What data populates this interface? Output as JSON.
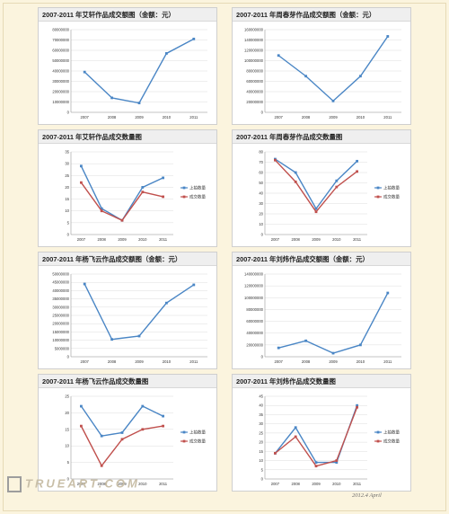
{
  "chart_data": [
    {
      "type": "line",
      "title": "2007-2011 年艾轩作品成交额图（金额：元）",
      "categories": [
        "2007",
        "2008",
        "2009",
        "2010",
        "2011"
      ],
      "yticks": [
        "0",
        "10000000",
        "20000000",
        "30000000",
        "40000000",
        "50000000",
        "60000000",
        "70000000",
        "80000000"
      ],
      "ylim": [
        0,
        80000000
      ],
      "series": [
        {
          "color": "#4a86c5",
          "values": [
            39000000,
            14000000,
            9000000,
            57000000,
            71000000
          ]
        }
      ]
    },
    {
      "type": "line",
      "title": "2007-2011 年周春芽作品成交额图（金额：元）",
      "categories": [
        "2007",
        "2008",
        "2009",
        "2010",
        "2011"
      ],
      "yticks": [
        "0",
        "20000000",
        "40000000",
        "60000000",
        "80000000",
        "100000000",
        "120000000",
        "140000000",
        "160000000"
      ],
      "ylim": [
        0,
        160000000
      ],
      "series": [
        {
          "color": "#4a86c5",
          "values": [
            110000000,
            70000000,
            22000000,
            70000000,
            147000000
          ]
        }
      ]
    },
    {
      "type": "line",
      "title": "2007-2011 年艾轩作品成交数量图",
      "categories": [
        "2007",
        "2008",
        "2009",
        "2010",
        "2011"
      ],
      "yticks": [
        "0",
        "5",
        "10",
        "15",
        "20",
        "25",
        "30",
        "35"
      ],
      "ylim": [
        0,
        35
      ],
      "legend": "right",
      "series": [
        {
          "name": "上拍数量",
          "color": "#4a86c5",
          "values": [
            29,
            11,
            6,
            20,
            24
          ]
        },
        {
          "name": "成交数量",
          "color": "#c0504d",
          "values": [
            22,
            10,
            6,
            18,
            16
          ]
        }
      ]
    },
    {
      "type": "line",
      "title": "2007-2011 年周春芽作品成交数量图",
      "categories": [
        "2007",
        "2008",
        "2009",
        "2010",
        "2011"
      ],
      "yticks": [
        "0",
        "10",
        "20",
        "30",
        "40",
        "50",
        "60",
        "70",
        "80"
      ],
      "ylim": [
        0,
        80
      ],
      "legend": "right",
      "series": [
        {
          "name": "上拍数量",
          "color": "#4a86c5",
          "values": [
            73,
            60,
            25,
            52,
            71
          ]
        },
        {
          "name": "成交数量",
          "color": "#c0504d",
          "values": [
            72,
            51,
            22,
            46,
            61
          ]
        }
      ]
    },
    {
      "type": "line",
      "title": "2007-2011 年杨飞云作品成交额图（金额：元）",
      "categories": [
        "2007",
        "2008",
        "2009",
        "2010",
        "2011"
      ],
      "yticks": [
        "0",
        "5000000",
        "10000000",
        "15000000",
        "20000000",
        "25000000",
        "30000000",
        "35000000",
        "40000000",
        "45000000",
        "50000000"
      ],
      "ylim": [
        0,
        50000000
      ],
      "series": [
        {
          "color": "#4a86c5",
          "values": [
            44000000,
            10500000,
            12500000,
            32500000,
            43500000
          ]
        }
      ]
    },
    {
      "type": "line",
      "title": "2007-2011 年刘炜作品成交额图（金额：元）",
      "categories": [
        "2007",
        "2008",
        "2009",
        "2010",
        "2011"
      ],
      "yticks": [
        "0",
        "20000000",
        "40000000",
        "60000000",
        "80000000",
        "100000000",
        "120000000",
        "140000000"
      ],
      "ylim": [
        0,
        140000000
      ],
      "series": [
        {
          "color": "#4a86c5",
          "values": [
            15000000,
            27000000,
            6000000,
            20000000,
            108000000
          ]
        }
      ]
    },
    {
      "type": "line",
      "title": "2007-2011 年杨飞云作品成交数量图",
      "categories": [
        "2007",
        "2008",
        "2009",
        "2010",
        "2011"
      ],
      "yticks": [
        "0",
        "5",
        "10",
        "15",
        "20",
        "25"
      ],
      "ylim": [
        0,
        25
      ],
      "legend": "right",
      "series": [
        {
          "name": "上拍数量",
          "color": "#4a86c5",
          "values": [
            22,
            13,
            14,
            22,
            19
          ]
        },
        {
          "name": "成交数量",
          "color": "#c0504d",
          "values": [
            16,
            4,
            12,
            15,
            16
          ]
        }
      ]
    },
    {
      "type": "line",
      "title": "2007-2011 年刘炜作品成交数量图",
      "categories": [
        "2007",
        "2008",
        "2009",
        "2010",
        "2011"
      ],
      "yticks": [
        "0",
        "5",
        "10",
        "15",
        "20",
        "25",
        "30",
        "35",
        "40",
        "45"
      ],
      "ylim": [
        0,
        45
      ],
      "legend": "right",
      "series": [
        {
          "name": "上拍数量",
          "color": "#4a86c5",
          "values": [
            14,
            28,
            9,
            9,
            40
          ]
        },
        {
          "name": "成交数量",
          "color": "#c0504d",
          "values": [
            14,
            23,
            7,
            10,
            39
          ]
        }
      ]
    }
  ],
  "footer": {
    "logo_text": "TRUEART.COM",
    "date_signature": "2012.4 April"
  }
}
